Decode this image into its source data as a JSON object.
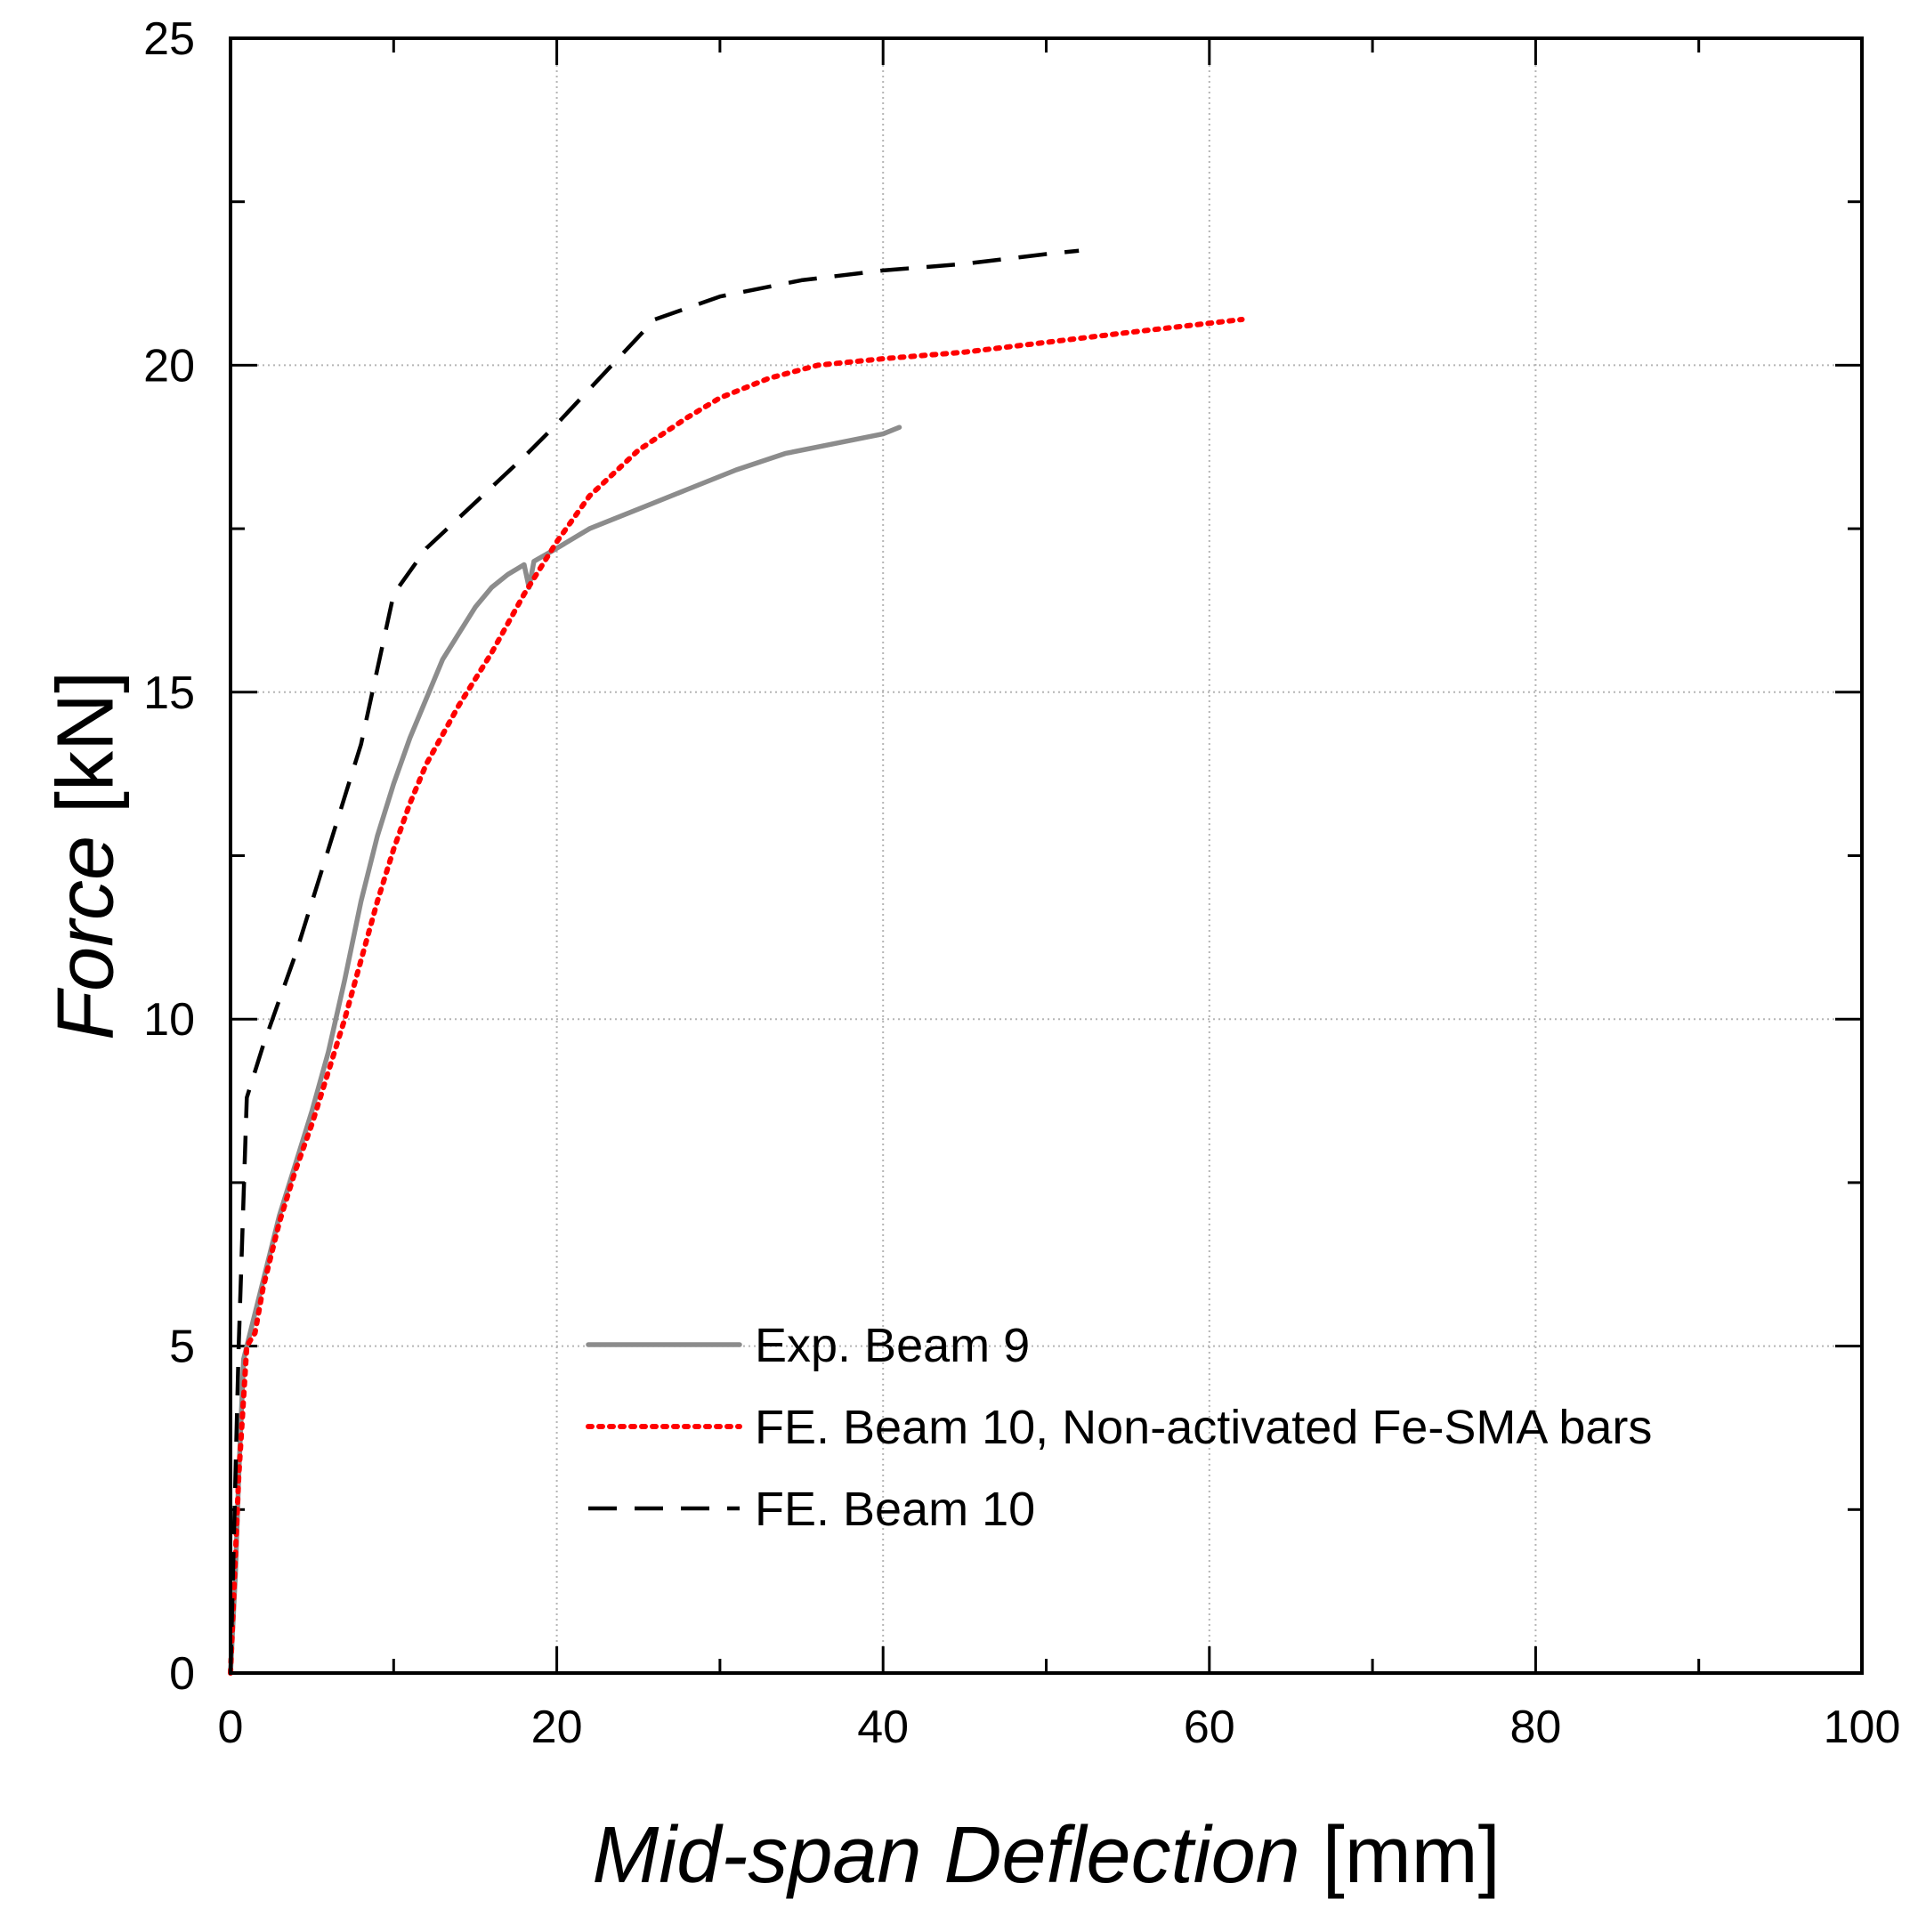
{
  "chart_data": {
    "type": "line",
    "xlabel": {
      "italic": "Mid-span Deflection",
      "unit": " [mm]"
    },
    "ylabel": {
      "italic": "Force",
      "unit": " [kN]"
    },
    "xlim": [
      0,
      100
    ],
    "ylim": [
      0,
      25
    ],
    "xticks": [
      0,
      20,
      40,
      60,
      80,
      100
    ],
    "yticks": [
      0,
      5,
      10,
      15,
      20,
      25
    ],
    "x_minor_step": 10,
    "y_minor_step": 2.5,
    "grid": "dotted major gridlines",
    "legend_position": "lower-center",
    "series": [
      {
        "name": "Exp. Beam 9",
        "color": "#8c8c8c",
        "style": "solid",
        "points": [
          [
            0,
            0
          ],
          [
            0.3,
            1.5
          ],
          [
            0.5,
            3
          ],
          [
            0.8,
            4.8
          ],
          [
            1.2,
            5.2
          ],
          [
            2,
            6
          ],
          [
            3,
            7
          ],
          [
            4,
            7.8
          ],
          [
            5,
            8.6
          ],
          [
            6,
            9.5
          ],
          [
            7,
            10.6
          ],
          [
            8,
            11.8
          ],
          [
            9,
            12.8
          ],
          [
            10,
            13.6
          ],
          [
            11,
            14.3
          ],
          [
            12,
            14.9
          ],
          [
            13,
            15.5
          ],
          [
            14,
            15.9
          ],
          [
            15,
            16.3
          ],
          [
            16,
            16.6
          ],
          [
            17,
            16.8
          ],
          [
            18,
            16.95
          ],
          [
            18.3,
            16.6
          ],
          [
            18.6,
            17
          ],
          [
            20,
            17.2
          ],
          [
            22,
            17.5
          ],
          [
            25,
            17.8
          ],
          [
            28,
            18.1
          ],
          [
            31,
            18.4
          ],
          [
            34,
            18.65
          ],
          [
            37,
            18.8
          ],
          [
            40,
            18.95
          ],
          [
            41,
            19.05
          ]
        ]
      },
      {
        "name": "FE. Beam 10, Non-activated Fe-SMA bars",
        "color": "#ff0000",
        "style": "dotted",
        "points": [
          [
            0,
            0
          ],
          [
            0.5,
            3
          ],
          [
            1,
            5
          ],
          [
            1.5,
            5.2
          ],
          [
            2,
            5.9
          ],
          [
            3,
            6.9
          ],
          [
            4,
            7.7
          ],
          [
            5,
            8.4
          ],
          [
            6,
            9.2
          ],
          [
            7,
            10
          ],
          [
            8,
            10.9
          ],
          [
            9,
            11.8
          ],
          [
            10,
            12.6
          ],
          [
            11,
            13.3
          ],
          [
            12,
            13.9
          ],
          [
            14,
            14.8
          ],
          [
            16,
            15.6
          ],
          [
            18,
            16.5
          ],
          [
            20,
            17.3
          ],
          [
            22,
            18
          ],
          [
            25,
            18.7
          ],
          [
            28,
            19.2
          ],
          [
            30,
            19.5
          ],
          [
            33,
            19.8
          ],
          [
            36,
            20
          ],
          [
            40,
            20.1
          ],
          [
            45,
            20.2
          ],
          [
            50,
            20.35
          ],
          [
            55,
            20.5
          ],
          [
            62,
            20.7
          ]
        ]
      },
      {
        "name": "FE. Beam 10",
        "color": "#000000",
        "style": "dashed",
        "points": [
          [
            0,
            0
          ],
          [
            0.5,
            5
          ],
          [
            1,
            8.8
          ],
          [
            2,
            9.6
          ],
          [
            4,
            11
          ],
          [
            6,
            12.6
          ],
          [
            8,
            14.2
          ],
          [
            10,
            16.5
          ],
          [
            12,
            17.2
          ],
          [
            15,
            17.9
          ],
          [
            18,
            18.6
          ],
          [
            20,
            19.1
          ],
          [
            23,
            19.9
          ],
          [
            26,
            20.7
          ],
          [
            30,
            21.05
          ],
          [
            35,
            21.3
          ],
          [
            40,
            21.45
          ],
          [
            45,
            21.55
          ],
          [
            50,
            21.7
          ],
          [
            52,
            21.75
          ]
        ]
      }
    ]
  }
}
